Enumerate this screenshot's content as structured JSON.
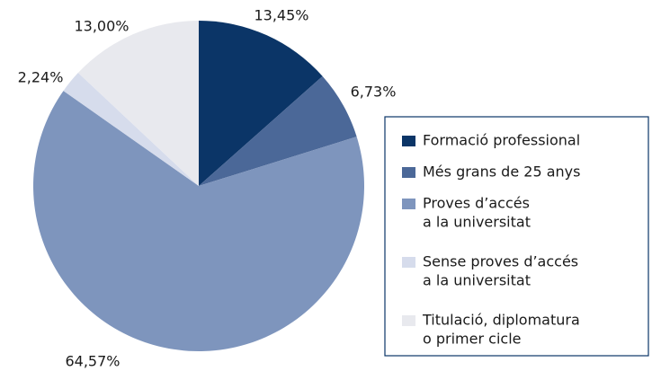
{
  "chart_data": {
    "type": "pie",
    "categories": [
      [
        "Formació professional"
      ],
      [
        "Més grans de 25 anys"
      ],
      [
        "Proves d’accés",
        "a la universitat"
      ],
      [
        "Sense proves d’accés",
        "a la universitat"
      ],
      [
        "Titulació, diplomatura",
        "o primer cicle"
      ]
    ],
    "values": [
      13.45,
      6.73,
      64.57,
      2.24,
      13.0
    ],
    "value_labels": [
      "13,45%",
      "6,73%",
      "64,57%",
      "2,24%",
      "13,00%"
    ],
    "colors": [
      "#0b3567",
      "#4b6898",
      "#7e95bd",
      "#d6dcec",
      "#e8e9ee"
    ],
    "legend": "right"
  }
}
